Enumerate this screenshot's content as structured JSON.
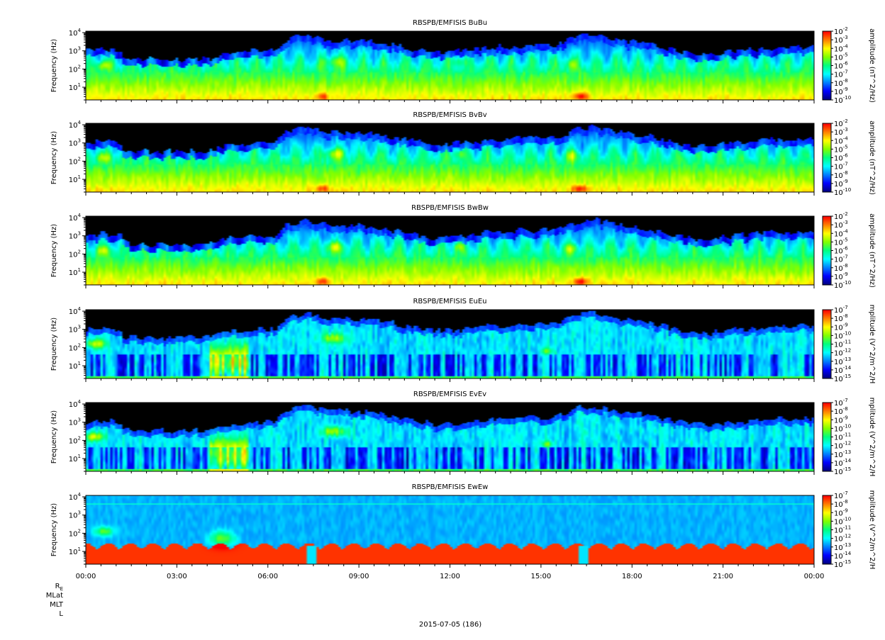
{
  "chart_data": [
    {
      "type": "heatmap",
      "title": "RBSPB/EMFISIS  BuBu",
      "ylabel": "Frequency (Hz)",
      "yscale": "log",
      "ylim": [
        2,
        12000
      ],
      "yticks": [
        {
          "base": "10",
          "exp": "1"
        },
        {
          "base": "10",
          "exp": "2"
        },
        {
          "base": "10",
          "exp": "3"
        },
        {
          "base": "10",
          "exp": "4"
        }
      ],
      "colorbar": {
        "label": "amplitude (nT^2/Hz)",
        "scale": "log",
        "range": [
          1e-10,
          0.01
        ],
        "ticks": [
          {
            "base": "10",
            "exp": "-2"
          },
          {
            "base": "10",
            "exp": "-3"
          },
          {
            "base": "10",
            "exp": "-4"
          },
          {
            "base": "10",
            "exp": "-5"
          },
          {
            "base": "10",
            "exp": "-6"
          },
          {
            "base": "10",
            "exp": "-7"
          },
          {
            "base": "10",
            "exp": "-8"
          },
          {
            "base": "10",
            "exp": "-9"
          },
          {
            "base": "10",
            "exp": "-10"
          }
        ]
      },
      "kind": "B"
    },
    {
      "type": "heatmap",
      "title": "RBSPB/EMFISIS  BvBv",
      "ylabel": "Frequency (Hz)",
      "yscale": "log",
      "ylim": [
        2,
        12000
      ],
      "yticks": [
        {
          "base": "10",
          "exp": "1"
        },
        {
          "base": "10",
          "exp": "2"
        },
        {
          "base": "10",
          "exp": "3"
        },
        {
          "base": "10",
          "exp": "4"
        }
      ],
      "colorbar": {
        "label": "amplitude (nT^2/Hz)",
        "scale": "log",
        "range": [
          1e-10,
          0.01
        ],
        "ticks": [
          {
            "base": "10",
            "exp": "-2"
          },
          {
            "base": "10",
            "exp": "-3"
          },
          {
            "base": "10",
            "exp": "-4"
          },
          {
            "base": "10",
            "exp": "-5"
          },
          {
            "base": "10",
            "exp": "-6"
          },
          {
            "base": "10",
            "exp": "-7"
          },
          {
            "base": "10",
            "exp": "-8"
          },
          {
            "base": "10",
            "exp": "-9"
          },
          {
            "base": "10",
            "exp": "-10"
          }
        ]
      },
      "kind": "B"
    },
    {
      "type": "heatmap",
      "title": "RBSPB/EMFISIS  BwBw",
      "ylabel": "Frequency (Hz)",
      "yscale": "log",
      "ylim": [
        2,
        12000
      ],
      "yticks": [
        {
          "base": "10",
          "exp": "1"
        },
        {
          "base": "10",
          "exp": "2"
        },
        {
          "base": "10",
          "exp": "3"
        },
        {
          "base": "10",
          "exp": "4"
        }
      ],
      "colorbar": {
        "label": "amplitude (nT^2/Hz)",
        "scale": "log",
        "range": [
          1e-10,
          0.01
        ],
        "ticks": [
          {
            "base": "10",
            "exp": "-2"
          },
          {
            "base": "10",
            "exp": "-3"
          },
          {
            "base": "10",
            "exp": "-4"
          },
          {
            "base": "10",
            "exp": "-5"
          },
          {
            "base": "10",
            "exp": "-6"
          },
          {
            "base": "10",
            "exp": "-7"
          },
          {
            "base": "10",
            "exp": "-8"
          },
          {
            "base": "10",
            "exp": "-9"
          },
          {
            "base": "10",
            "exp": "-10"
          }
        ]
      },
      "kind": "B"
    },
    {
      "type": "heatmap",
      "title": "RBSPB/EMFISIS  EuEu",
      "ylabel": "Frequency (Hz)",
      "yscale": "log",
      "ylim": [
        2,
        12000
      ],
      "yticks": [
        {
          "base": "10",
          "exp": "1"
        },
        {
          "base": "10",
          "exp": "2"
        },
        {
          "base": "10",
          "exp": "3"
        },
        {
          "base": "10",
          "exp": "4"
        }
      ],
      "colorbar": {
        "label": "mplitude (V^2/m^2/H",
        "scale": "log",
        "range": [
          1e-15,
          1e-07
        ],
        "ticks": [
          {
            "base": "10",
            "exp": "-7"
          },
          {
            "base": "10",
            "exp": "-8"
          },
          {
            "base": "10",
            "exp": "-9"
          },
          {
            "base": "10",
            "exp": "-10"
          },
          {
            "base": "10",
            "exp": "-11"
          },
          {
            "base": "10",
            "exp": "-12"
          },
          {
            "base": "10",
            "exp": "-13"
          },
          {
            "base": "10",
            "exp": "-14"
          },
          {
            "base": "10",
            "exp": "-15"
          }
        ]
      },
      "kind": "E"
    },
    {
      "type": "heatmap",
      "title": "RBSPB/EMFISIS  EvEv",
      "ylabel": "Frequency (Hz)",
      "yscale": "log",
      "ylim": [
        2,
        12000
      ],
      "yticks": [
        {
          "base": "10",
          "exp": "1"
        },
        {
          "base": "10",
          "exp": "2"
        },
        {
          "base": "10",
          "exp": "3"
        },
        {
          "base": "10",
          "exp": "4"
        }
      ],
      "colorbar": {
        "label": "mplitude (V^2/m^2/H",
        "scale": "log",
        "range": [
          1e-15,
          1e-07
        ],
        "ticks": [
          {
            "base": "10",
            "exp": "-7"
          },
          {
            "base": "10",
            "exp": "-8"
          },
          {
            "base": "10",
            "exp": "-9"
          },
          {
            "base": "10",
            "exp": "-10"
          },
          {
            "base": "10",
            "exp": "-11"
          },
          {
            "base": "10",
            "exp": "-12"
          },
          {
            "base": "10",
            "exp": "-13"
          },
          {
            "base": "10",
            "exp": "-14"
          },
          {
            "base": "10",
            "exp": "-15"
          }
        ]
      },
      "kind": "E"
    },
    {
      "type": "heatmap",
      "title": "RBSPB/EMFISIS  EwEw",
      "ylabel": "Frequency (Hz)",
      "yscale": "log",
      "ylim": [
        2,
        12000
      ],
      "yticks": [
        {
          "base": "10",
          "exp": "1"
        },
        {
          "base": "10",
          "exp": "2"
        },
        {
          "base": "10",
          "exp": "3"
        },
        {
          "base": "10",
          "exp": "4"
        }
      ],
      "colorbar": {
        "label": "mplitude (V^2/m^2/H",
        "scale": "log",
        "range": [
          1e-15,
          1e-07
        ],
        "ticks": [
          {
            "base": "10",
            "exp": "-7"
          },
          {
            "base": "10",
            "exp": "-8"
          },
          {
            "base": "10",
            "exp": "-9"
          },
          {
            "base": "10",
            "exp": "-10"
          },
          {
            "base": "10",
            "exp": "-11"
          },
          {
            "base": "10",
            "exp": "-12"
          },
          {
            "base": "10",
            "exp": "-13"
          },
          {
            "base": "10",
            "exp": "-14"
          },
          {
            "base": "10",
            "exp": "-15"
          }
        ]
      },
      "kind": "Ew"
    }
  ],
  "xaxis": {
    "ticks": [
      "00:00",
      "03:00",
      "06:00",
      "09:00",
      "12:00",
      "15:00",
      "18:00",
      "21:00",
      "00:00"
    ],
    "range_hours": [
      0,
      24
    ],
    "major_step_hours": 3,
    "minor_step_hours": 0.5,
    "date_label": "2015-07-05 (186)"
  },
  "ephemeris_labels": [
    {
      "base": "R",
      "sub": "E"
    },
    {
      "base": "MLat",
      "sub": ""
    },
    {
      "base": "MLT",
      "sub": ""
    },
    {
      "base": "L",
      "sub": ""
    }
  ],
  "colormap": [
    "#000080",
    "#0000ff",
    "#0080ff",
    "#00ffff",
    "#00ff80",
    "#80ff00",
    "#ffff00",
    "#ff8000",
    "#ff0000"
  ]
}
